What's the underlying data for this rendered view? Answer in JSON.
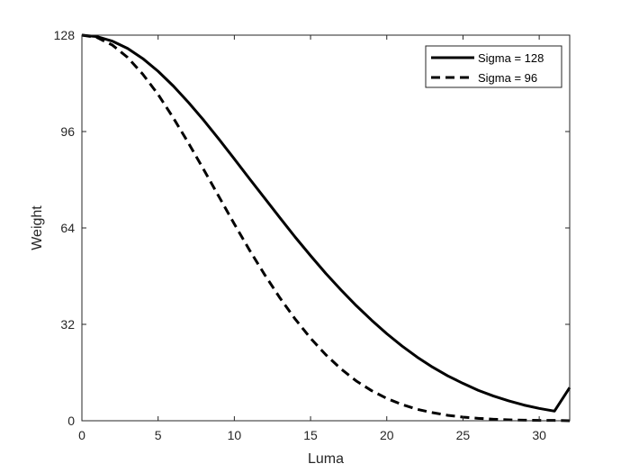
{
  "chart_data": {
    "type": "line",
    "title": "",
    "xlabel": "Luma",
    "ylabel": "Weight",
    "xlim": [
      0,
      32
    ],
    "ylim": [
      0,
      128
    ],
    "xticks": [
      0,
      5,
      10,
      15,
      20,
      25,
      30
    ],
    "yticks": [
      0,
      32,
      64,
      96,
      128
    ],
    "grid": false,
    "legend_position": "top-right",
    "x": [
      0,
      1,
      2,
      3,
      4,
      5,
      6,
      7,
      8,
      9,
      10,
      11,
      12,
      13,
      14,
      15,
      16,
      17,
      18,
      19,
      20,
      21,
      22,
      23,
      24,
      25,
      26,
      27,
      28,
      29,
      30,
      31,
      32
    ],
    "series": [
      {
        "name": "Sigma = 128",
        "style": "solid",
        "color": "#000000",
        "values": [
          128.0,
          127.5,
          126.0,
          123.6,
          120.2,
          116.0,
          111.1,
          105.6,
          99.7,
          93.4,
          86.9,
          80.3,
          73.8,
          67.3,
          60.9,
          54.8,
          48.9,
          43.4,
          38.2,
          33.4,
          28.9,
          24.8,
          21.1,
          17.8,
          14.9,
          12.4,
          10.1,
          8.2,
          6.6,
          5.2,
          4.1,
          3.2,
          11.0
        ]
      },
      {
        "name": "Sigma = 96",
        "style": "dashed",
        "color": "#000000",
        "values": [
          128.0,
          127.2,
          124.7,
          120.6,
          115.0,
          108.3,
          100.5,
          92.1,
          83.3,
          74.3,
          65.3,
          56.6,
          48.4,
          40.7,
          33.7,
          27.4,
          21.9,
          17.2,
          13.2,
          10.0,
          7.4,
          5.4,
          3.8,
          2.7,
          1.8,
          1.2,
          0.8,
          0.5,
          0.3,
          0.2,
          0.1,
          0.1,
          0.0
        ]
      }
    ]
  }
}
